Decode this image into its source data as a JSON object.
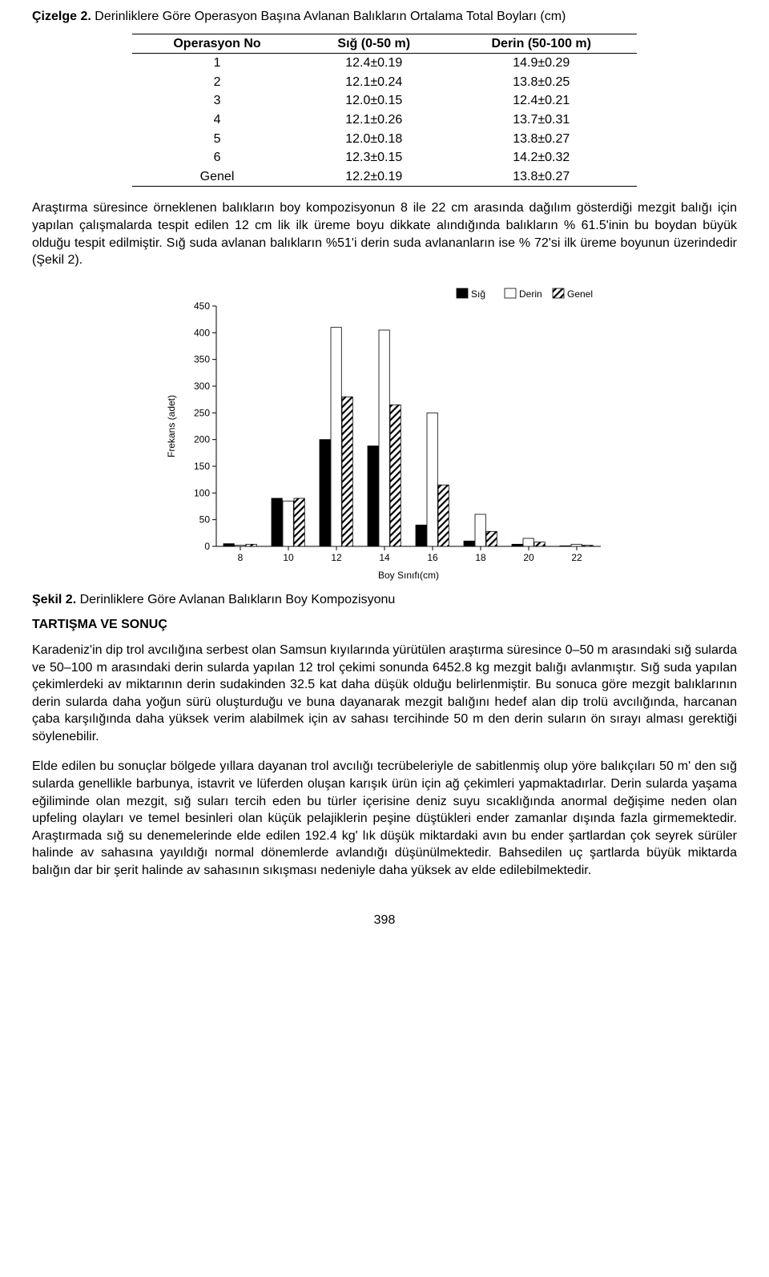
{
  "table": {
    "caption_prefix": "Çizelge 2.",
    "caption_rest": " Derinliklere Göre Operasyon Başına Avlanan Balıkların Ortalama Total Boyları (cm)",
    "headers": [
      "Operasyon No",
      "Sığ (0-50 m)",
      "Derin (50-100 m)"
    ],
    "rows": [
      [
        "1",
        "12.4±0.19",
        "14.9±0.29"
      ],
      [
        "2",
        "12.1±0.24",
        "13.8±0.25"
      ],
      [
        "3",
        "12.0±0.15",
        "12.4±0.21"
      ],
      [
        "4",
        "12.1±0.26",
        "13.7±0.31"
      ],
      [
        "5",
        "12.0±0.18",
        "13.8±0.27"
      ],
      [
        "6",
        "12.3±0.15",
        "14.2±0.32"
      ],
      [
        "Genel",
        "12.2±0.19",
        "13.8±0.27"
      ]
    ]
  },
  "para1": "Araştırma süresince örneklenen balıkların boy kompozisyonun 8 ile 22 cm arasında dağılım gösterdiği mezgit balığı için yapılan çalışmalarda tespit edilen 12 cm lik ilk üreme boyu dikkate alındığında balıkların % 61.5'inin bu boydan büyük olduğu tespit edilmiştir. Sığ suda avlanan balıkların %51'i derin suda avlananların ise % 72'si ilk üreme boyunun üzerindedir (Şekil 2).",
  "figure": {
    "type": "bar",
    "ylabel": "Frekans (adet)",
    "xlabel": "Boy Sınıfı(cm)",
    "legend": [
      "Sığ",
      "Derin",
      "Genel"
    ],
    "categories": [
      "8",
      "10",
      "12",
      "14",
      "16",
      "18",
      "20",
      "22"
    ],
    "series": {
      "sig": [
        5,
        90,
        200,
        188,
        40,
        10,
        4,
        1
      ],
      "derin": [
        2,
        85,
        410,
        405,
        250,
        60,
        15,
        4
      ],
      "genel": [
        4,
        90,
        280,
        265,
        115,
        28,
        8,
        2
      ]
    },
    "ylim": [
      0,
      450
    ],
    "ytick_step": 50,
    "bar_fill": {
      "sig": "#000000",
      "derin": "#ffffff",
      "genel": "hatch"
    },
    "hatch_color": "#000000",
    "axis_color": "#000000",
    "grid_color": "#000000",
    "grid": false,
    "label_fontsize": 12,
    "tick_fontsize": 12,
    "bar_cluster_width": 0.7
  },
  "fig_caption_prefix": "Şekil 2.",
  "fig_caption_rest": " Derinliklere Göre Avlanan Balıkların Boy Kompozisyonu",
  "section_heading": "TARTIŞMA VE SONUÇ",
  "para2": "Karadeniz'in dip trol avcılığına serbest olan Samsun kıyılarında yürütülen araştırma süresince 0–50 m arasındaki sığ sularda ve 50–100 m arasındaki derin sularda yapılan 12 trol çekimi sonunda 6452.8 kg mezgit balığı avlanmıştır. Sığ suda yapılan çekimlerdeki av miktarının derin sudakinden 32.5 kat daha düşük olduğu belirlenmiştir. Bu sonuca göre mezgit balıklarının derin sularda daha yoğun sürü oluşturduğu ve buna dayanarak mezgit balığını hedef alan dip trolü avcılığında, harcanan çaba karşılığında daha yüksek verim alabilmek için av sahası tercihinde 50 m den derin suların ön sırayı alması gerektiği söylenebilir.",
  "para3": "Elde edilen bu sonuçlar bölgede yıllara dayanan trol avcılığı tecrübeleriyle de sabitlenmiş olup yöre balıkçıları 50 m' den sığ sularda genellikle barbunya, istavrit ve lüferden oluşan karışık ürün için ağ çekimleri yapmaktadırlar.  Derin sularda yaşama eğiliminde olan mezgit, sığ suları tercih eden bu türler içerisine deniz suyu sıcaklığında anormal değişime neden olan upfeling olayları ve temel besinleri olan küçük pelajiklerin peşine düştükleri ender zamanlar dışında fazla girmemektedir. Araştırmada sığ su denemelerinde elde edilen 192.4 kg' lık düşük miktardaki avın bu ender şartlardan çok seyrek sürüler halinde av sahasına yayıldığı normal dönemlerde avlandığı düşünülmektedir. Bahsedilen uç şartlarda büyük miktarda balığın dar bir şerit halinde av sahasının sıkışması nedeniyle daha yüksek av elde edilebilmektedir.",
  "page_number": "398"
}
